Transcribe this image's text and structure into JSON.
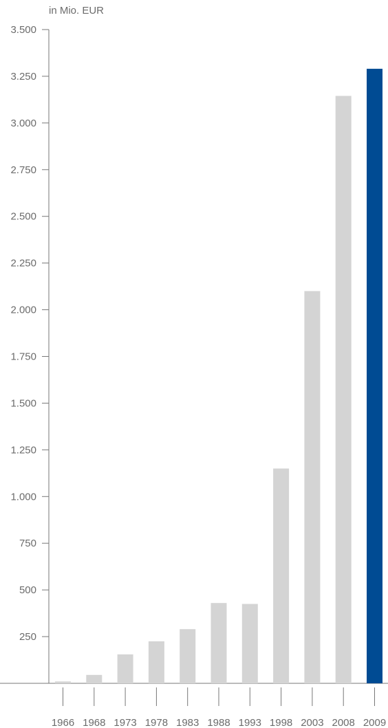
{
  "chart_data": {
    "type": "bar",
    "title": "",
    "xlabel": "",
    "ylabel": "in Mio. EUR",
    "categories": [
      "1966",
      "1968",
      "1973",
      "1978",
      "1983",
      "1988",
      "1993",
      "1998",
      "2003",
      "2008",
      "2009"
    ],
    "values": [
      10,
      45,
      155,
      225,
      290,
      430,
      425,
      1150,
      2100,
      3145,
      3290
    ],
    "highlight_category": "2009",
    "ylim": [
      0,
      3500
    ],
    "yticks": [
      250,
      500,
      750,
      1000,
      1250,
      1500,
      1750,
      2000,
      2250,
      2500,
      2750,
      3000,
      3250,
      3500
    ],
    "ytick_labels": [
      "250",
      "500",
      "750",
      "1.000",
      "1.250",
      "1.500",
      "1.750",
      "2.000",
      "2.250",
      "2.500",
      "2.750",
      "3.000",
      "3.250",
      "3.500"
    ],
    "grid": false,
    "legend": "none",
    "colors": {
      "bar": "#d4d4d4",
      "highlight": "#004b93",
      "axis": "#777777",
      "text": "#6b6b6b"
    }
  }
}
